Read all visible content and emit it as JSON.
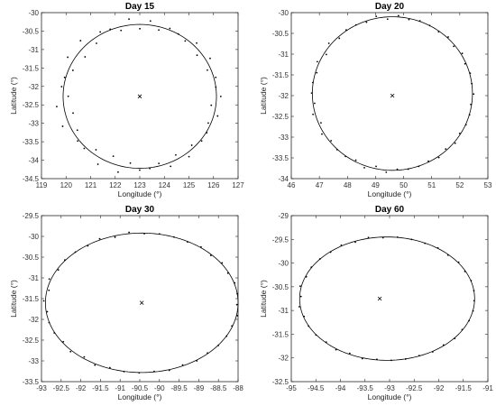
{
  "colors": {
    "axis": "#262626",
    "fit_curve": "#000000",
    "points": "#000000",
    "center": "#000000",
    "background": "#ffffff"
  },
  "chart_data": [
    {
      "type": "scatter",
      "title": "Day 15",
      "xlabel": "Longitude (°)",
      "ylabel": "Latitude (°)",
      "xlim": [
        119,
        127
      ],
      "ylim": [
        -34.5,
        -30
      ],
      "xticks": [
        "119",
        "120",
        "121",
        "122",
        "123",
        "124",
        "125",
        "126",
        "127"
      ],
      "yticks": [
        "-30",
        "-30.5",
        "-31",
        "-31.5",
        "-32",
        "-32.5",
        "-33",
        "-33.5",
        "-34",
        "-34.5"
      ],
      "grid": false,
      "center": {
        "x": 123.0,
        "y": -32.27
      },
      "ellipse": {
        "cx": 123.0,
        "cy": -32.27,
        "rx": 3.12,
        "ry": 1.95
      },
      "points_noise": 0.1
    },
    {
      "type": "scatter",
      "title": "Day 20",
      "xlabel": "Longitude (°)",
      "ylabel": "Latitude (°)",
      "xlim": [
        46,
        53
      ],
      "ylim": [
        -34,
        -30
      ],
      "xticks": [
        "46",
        "47",
        "48",
        "49",
        "50",
        "51",
        "52",
        "53"
      ],
      "yticks": [
        "-30",
        "-30.5",
        "-31",
        "-31.5",
        "-32",
        "-32.5",
        "-33",
        "-33.5",
        "-34"
      ],
      "grid": false,
      "center": {
        "x": 49.6,
        "y": -32.0
      },
      "ellipse": {
        "cx": 49.6,
        "cy": -31.95,
        "rx": 2.85,
        "ry": 1.85
      },
      "points_noise": 0.03
    },
    {
      "type": "scatter",
      "title": "Day 30",
      "xlabel": "Longitude (°)",
      "ylabel": "Latitude (°)",
      "xlim": [
        -93,
        -88
      ],
      "ylim": [
        -33.5,
        -29.5
      ],
      "xticks": [
        "-93",
        "-92.5",
        "-92",
        "-91.5",
        "-91",
        "-90.5",
        "-90",
        "-89.5",
        "-89",
        "-88.5",
        "-88"
      ],
      "yticks": [
        "-29.5",
        "-30",
        "-30.5",
        "-31",
        "-31.5",
        "-32",
        "-32.5",
        "-33",
        "-33.5"
      ],
      "grid": false,
      "center": {
        "x": -90.45,
        "y": -31.6
      },
      "ellipse": {
        "cx": -90.45,
        "cy": -31.6,
        "rx": 2.45,
        "ry": 1.68
      },
      "points_noise": 0.02
    },
    {
      "type": "scatter",
      "title": "Day 60",
      "xlabel": "Longitude (°)",
      "ylabel": "Latitude (°)",
      "xlim": [
        -95,
        -91
      ],
      "ylim": [
        -32.5,
        -29
      ],
      "xticks": [
        "-95",
        "-94.5",
        "-94",
        "-93.5",
        "-93",
        "-92.5",
        "-92",
        "-91.5",
        "-91"
      ],
      "yticks": [
        "-29",
        "-29.5",
        "-30",
        "-30.5",
        "-31",
        "-31.5",
        "-32",
        "-32.5"
      ],
      "grid": false,
      "center": {
        "x": -93.2,
        "y": -30.75
      },
      "ellipse": {
        "cx": -93.05,
        "cy": -30.75,
        "rx": 1.78,
        "ry": 1.3
      },
      "points_noise": 0.015
    }
  ]
}
